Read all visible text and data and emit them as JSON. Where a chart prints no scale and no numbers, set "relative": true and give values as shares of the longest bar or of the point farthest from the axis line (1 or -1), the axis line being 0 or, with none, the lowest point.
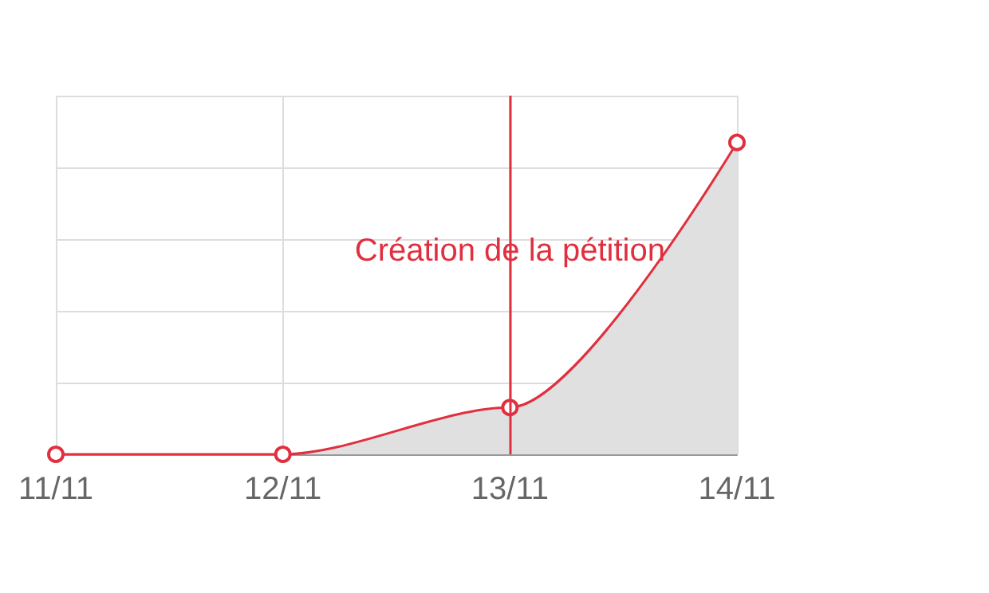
{
  "chart_data": {
    "type": "area",
    "relative": true,
    "categories": [
      "11/11",
      "12/11",
      "13/11",
      "14/11"
    ],
    "series": [
      {
        "color": "#e0303f",
        "values": [
          0,
          0,
          0.15,
          1
        ]
      }
    ],
    "ref_lines": [
      {
        "axis": "x",
        "value": "13/11",
        "label": "Création de la pétition",
        "color": "#e0303f"
      }
    ],
    "grid": true,
    "marker": "circle"
  }
}
